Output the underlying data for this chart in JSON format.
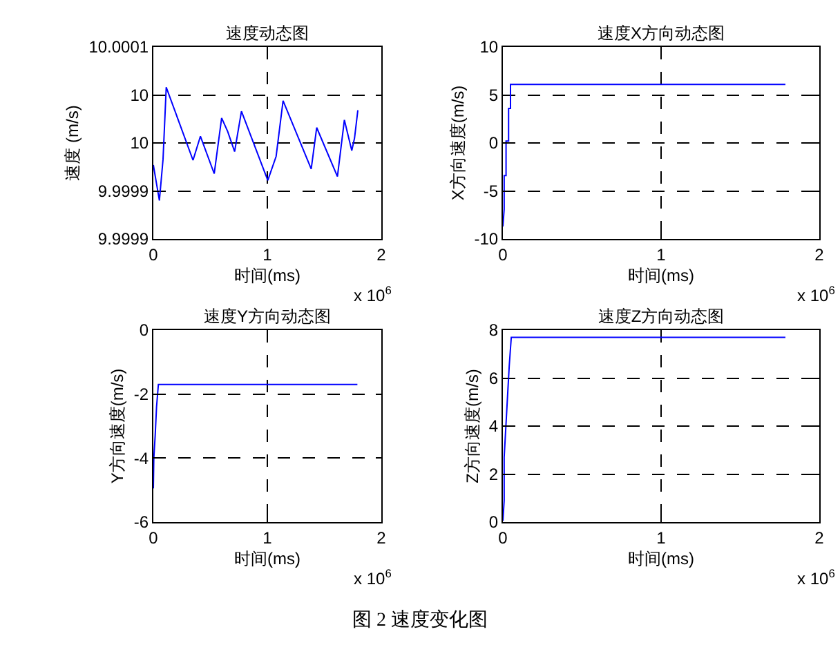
{
  "chart_data": [
    {
      "type": "line",
      "title": "速度动态图",
      "xlabel": "时间(ms)",
      "ylabel": "速度 (m/s)",
      "grid": true,
      "marker": "none",
      "line_style": "solid",
      "xlim": [
        0,
        2
      ],
      "xticks": [
        0,
        1,
        2
      ],
      "ylim": [
        9.99985,
        10.00005
      ],
      "yticks": [
        {
          "value": 9.99985,
          "label": "9.9999"
        },
        {
          "value": 9.9999,
          "label": "9.9999"
        },
        {
          "value": 9.99995,
          "label": "10"
        },
        {
          "value": 10,
          "label": "10"
        },
        {
          "value": 10.00005,
          "label": "10.0001"
        }
      ],
      "annotations": [
        "x 10$^{6}$",
        "图 2  速度变化图"
      ],
      "series": [
        {
          "color": "#0000ff",
          "x": [
            0,
            0.053,
            0.085,
            0.113,
            0.348,
            0.413,
            0.534,
            0.599,
            0.652,
            0.713,
            0.773,
            1.004,
            1.077,
            1.138,
            1.385,
            1.433,
            1.615,
            1.676,
            1.704,
            1.741,
            1.765,
            1.794
          ],
          "values": [
            9.999927,
            9.99989,
            9.999933,
            10.000008,
            9.999932,
            9.999957,
            9.999918,
            9.999976,
            9.999962,
            9.999941,
            9.999983,
            9.999911,
            9.999936,
            9.999994,
            9.999923,
            9.999966,
            9.999915,
            9.999974,
            9.99996,
            9.999942,
            9.999955,
            9.999984
          ]
        }
      ]
    },
    {
      "type": "line",
      "title": "速度X方向动态图",
      "xlabel": "时间(ms)",
      "ylabel": "X方向速度(m/s)",
      "grid": true,
      "marker": "none",
      "line_style": "solid",
      "xlim": [
        0,
        2
      ],
      "xticks": [
        0,
        1,
        2
      ],
      "ylim": [
        -10,
        10
      ],
      "yticks": [
        -10,
        -5,
        0,
        5,
        10
      ],
      "annotations": [
        "x 10$^{6}$"
      ],
      "series": [
        {
          "color": "#0000ff",
          "x": [
            0,
            0.008,
            0.008,
            0.02,
            0.02,
            0.036,
            0.036,
            0.048,
            0.048,
            1.786
          ],
          "values": [
            -8.7,
            -6.9,
            -3.4,
            -3.4,
            0.2,
            0.2,
            3.6,
            3.6,
            6.1,
            6.1
          ]
        }
      ]
    },
    {
      "type": "line",
      "title": "速度Y方向动态图",
      "xlabel": "时间(ms)",
      "ylabel": "Y方向速度(m/s)",
      "grid": true,
      "marker": "none",
      "line_style": "solid",
      "xlim": [
        0,
        2
      ],
      "xticks": [
        0,
        1,
        2
      ],
      "ylim": [
        -6,
        0
      ],
      "yticks": [
        -6,
        -4,
        -2,
        0
      ],
      "annotations": [
        "x 10$^{6}$"
      ],
      "series": [
        {
          "color": "#0000ff",
          "x": [
            0,
            0.004,
            0.016,
            0.028,
            0.044,
            0.053,
            1.79
          ],
          "values": [
            -4.95,
            -4.0,
            -3.3,
            -2.4,
            -1.7,
            -1.7,
            -1.7
          ]
        }
      ]
    },
    {
      "type": "line",
      "title": "速度Z方向动态图",
      "xlabel": "时间(ms)",
      "ylabel": "Z方向速度(m/s)",
      "grid": true,
      "marker": "none",
      "line_style": "solid",
      "xlim": [
        0,
        2
      ],
      "xticks": [
        0,
        1,
        2
      ],
      "ylim": [
        0,
        8
      ],
      "yticks": [
        0,
        2,
        4,
        6,
        8
      ],
      "annotations": [
        "x 10$^{6}$"
      ],
      "series": [
        {
          "color": "#0000ff",
          "x": [
            0,
            0.008,
            0.008,
            0.024,
            0.04,
            0.053,
            1.786
          ],
          "values": [
            0.05,
            0.9,
            2.7,
            4.6,
            6.5,
            7.7,
            7.7
          ]
        }
      ]
    }
  ]
}
